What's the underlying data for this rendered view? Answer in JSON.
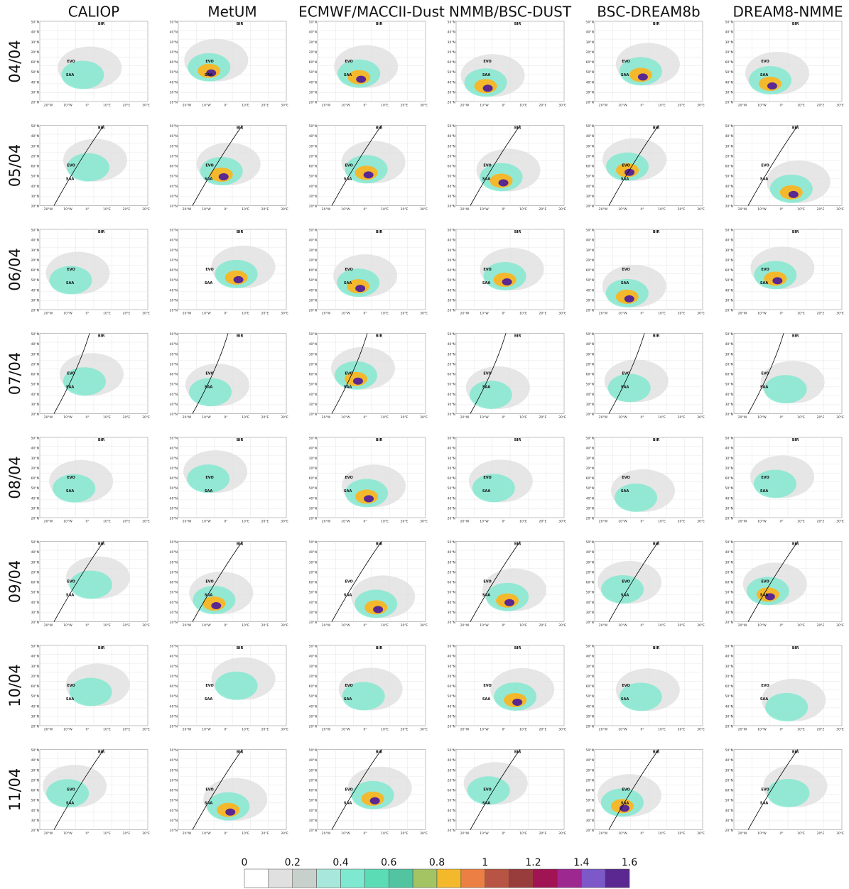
{
  "column_titles": [
    "CALIOP",
    "MetUM",
    "ECMWF/MACCII-Dust",
    "NMMB/BSC-DUST",
    "BSC-DREAM8b",
    "DREAM8-NMME"
  ],
  "row_labels": [
    "04/04",
    "05/04",
    "06/04",
    "07/04",
    "08/04",
    "09/04",
    "10/04",
    "11/04"
  ],
  "map_axes": {
    "x_labels": [
      "20°W",
      "10°W",
      "0°",
      "10°E",
      "20°E",
      "30°E"
    ],
    "y_labels": [
      "50°N",
      "40°N",
      "30°N",
      "20°N",
      "60°N",
      "50°N",
      "40°N",
      "30°N",
      "20°N"
    ]
  },
  "stations": [
    "BIR",
    "EVO",
    "SAA"
  ],
  "colorbar": {
    "lim": [
      0,
      1.6
    ],
    "ticks": [
      0,
      0.2,
      0.4,
      0.6,
      0.8,
      1,
      1.2,
      1.4,
      1.6
    ],
    "colors": [
      "#ffffff",
      "#e0e0e0",
      "#c8d0cc",
      "#a8e8dc",
      "#7ee8d0",
      "#5cdcb4",
      "#52c4a0",
      "#a4c464",
      "#f4b82c",
      "#ec8044",
      "#b85444",
      "#983c3c",
      "#a01454",
      "#9c2890",
      "#7c58c8",
      "#5a2890"
    ]
  }
}
